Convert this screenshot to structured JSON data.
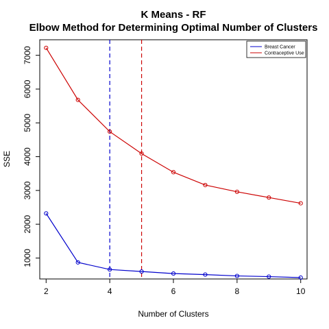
{
  "chart_data": {
    "type": "line",
    "title": "K Means - RF",
    "subtitle": "Elbow Method for Determining Optimal Number of Clusters",
    "xlabel": "Number of Clusters",
    "ylabel": "SSE",
    "x": [
      2,
      3,
      4,
      5,
      6,
      7,
      8,
      9,
      10
    ],
    "xlim": [
      1.8,
      10.2
    ],
    "ylim": [
      380,
      7460
    ],
    "xticks": [
      "2",
      "4",
      "6",
      "8",
      "10"
    ],
    "yticks": [
      "1000",
      "2000",
      "3000",
      "4000",
      "5000",
      "6000",
      "7000"
    ],
    "series": [
      {
        "name": "Breast Cancer",
        "color": "#0000cc",
        "values": [
          2320,
          870,
          660,
          600,
          540,
          510,
          470,
          450,
          420
        ]
      },
      {
        "name": "Contraceptive Use",
        "color": "#cc0000",
        "values": [
          7220,
          5680,
          4740,
          4090,
          3540,
          3160,
          2960,
          2790,
          2620
        ]
      }
    ],
    "vlines": [
      {
        "x": 4,
        "color": "#0000cc",
        "style": "dashed"
      },
      {
        "x": 5,
        "color": "#cc0000",
        "style": "dashed"
      }
    ],
    "legend_position": "top-right",
    "grid": false,
    "markers": "open-circle"
  }
}
